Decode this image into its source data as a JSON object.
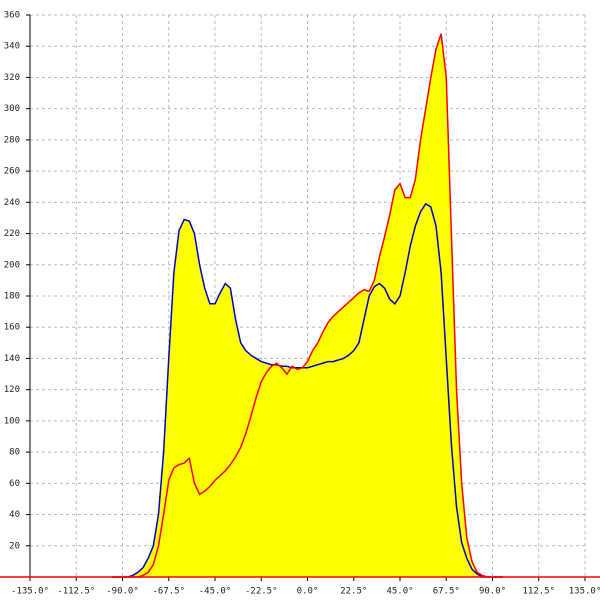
{
  "chart_data": {
    "type": "area_line",
    "x": [
      -95,
      -92.5,
      -90,
      -87.5,
      -85,
      -82.5,
      -80,
      -77.5,
      -75,
      -72.5,
      -70,
      -67.5,
      -65,
      -62.5,
      -60,
      -57.5,
      -55,
      -52.5,
      -50,
      -47.5,
      -45,
      -42.5,
      -40,
      -37.5,
      -35,
      -32.5,
      -30,
      -27.5,
      -25,
      -22.5,
      -20,
      -17.5,
      -15,
      -12.5,
      -10,
      -7.5,
      -5,
      -2.5,
      0,
      2.5,
      5,
      7.5,
      10,
      12.5,
      15,
      17.5,
      20,
      22.5,
      25,
      27.5,
      30,
      32.5,
      35,
      37.5,
      40,
      42.5,
      45,
      47.5,
      50,
      52.5,
      55,
      57.5,
      60,
      62.5,
      65,
      67.5,
      70,
      72.5,
      75,
      77.5,
      80,
      82.5,
      85,
      87.5,
      90,
      92.5,
      95
    ],
    "series": [
      {
        "color": "#0000cc",
        "values": [
          0,
          0,
          0,
          0,
          1,
          3,
          6,
          12,
          20,
          40,
          80,
          140,
          195,
          222,
          229,
          228,
          220,
          200,
          185,
          175,
          175,
          182,
          188,
          185,
          165,
          150,
          145,
          142,
          140,
          138,
          137,
          136,
          136,
          135,
          135,
          134,
          134,
          134,
          134,
          135,
          136,
          137,
          138,
          138,
          139,
          140,
          142,
          145,
          150,
          165,
          180,
          186,
          188,
          185,
          178,
          175,
          180,
          195,
          212,
          225,
          234,
          239,
          237,
          225,
          195,
          140,
          85,
          45,
          22,
          12,
          5,
          2,
          0,
          0,
          0,
          0,
          0
        ]
      },
      {
        "color": "#ff0000",
        "values": [
          0,
          0,
          0,
          0,
          0,
          0,
          1,
          3,
          8,
          20,
          40,
          62,
          70,
          72,
          73,
          76,
          60,
          53,
          55,
          58,
          62,
          65,
          68,
          72,
          77,
          83,
          92,
          103,
          115,
          125,
          131,
          135,
          137,
          134,
          130,
          135,
          133,
          134,
          138,
          145,
          150,
          157,
          163,
          167,
          170,
          173,
          176,
          179,
          182,
          184,
          183,
          190,
          205,
          218,
          232,
          248,
          252,
          243,
          243,
          255,
          280,
          300,
          320,
          338,
          348,
          320,
          220,
          120,
          60,
          25,
          10,
          3,
          1,
          0,
          0,
          0,
          0
        ]
      }
    ],
    "fill_color": "#ffff00",
    "xlim": [
      -135,
      135
    ],
    "xticks": [
      {
        "value": -135,
        "label": "-135.0°"
      },
      {
        "value": -112.5,
        "label": "-112.5°"
      },
      {
        "value": -90,
        "label": "-90.0°"
      },
      {
        "value": -67.5,
        "label": "-67.5°"
      },
      {
        "value": -45,
        "label": "-45.0°"
      },
      {
        "value": -22.5,
        "label": "-22.5°"
      },
      {
        "value": 0,
        "label": "0.0°"
      },
      {
        "value": 22.5,
        "label": "22.5°"
      },
      {
        "value": 45,
        "label": "45.0°"
      },
      {
        "value": 67.5,
        "label": "67.5°"
      },
      {
        "value": 90,
        "label": "90.0°"
      },
      {
        "value": 112.5,
        "label": "112.5°"
      },
      {
        "value": 135,
        "label": "135.0°"
      }
    ],
    "ylim": [
      0,
      360
    ],
    "yticks": [
      20,
      40,
      60,
      80,
      100,
      120,
      140,
      160,
      180,
      200,
      220,
      240,
      260,
      280,
      300,
      320,
      340,
      360
    ],
    "grid": true
  }
}
